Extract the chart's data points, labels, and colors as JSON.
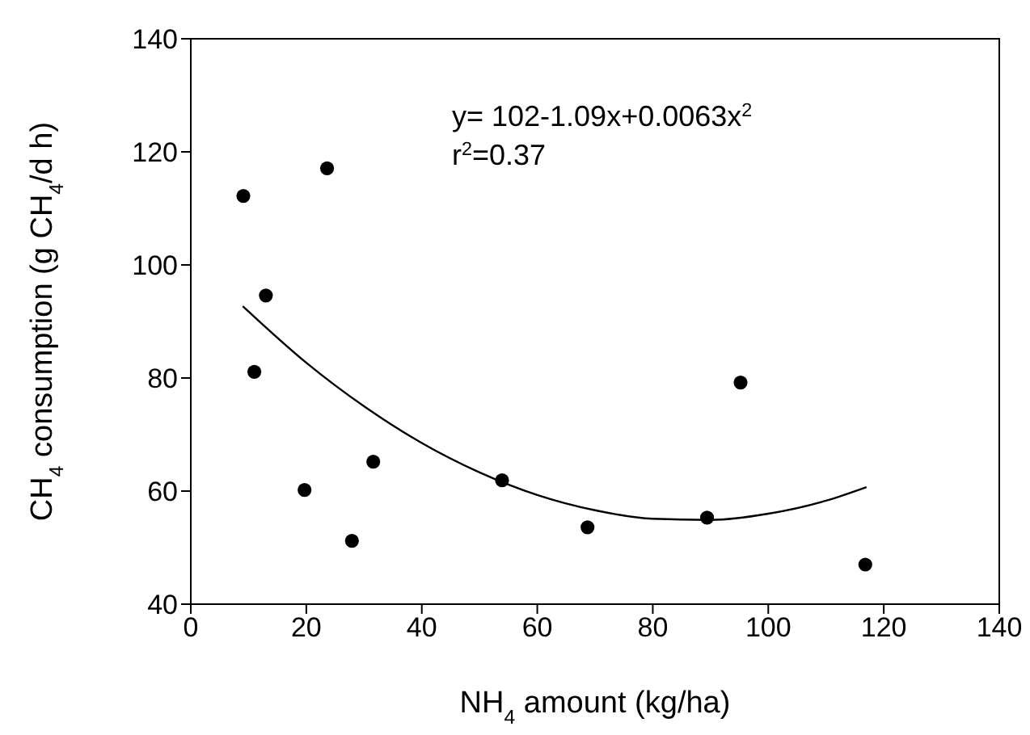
{
  "chart_data": {
    "type": "scatter",
    "xlabel": "NH$_{4}$ amount (kg/ha)",
    "ylabel": "CH$_{4}$ consumption (g CH$_{4}$/d h)",
    "annotations": [
      "y= 102-1.09x+0.0063x$^{2}$",
      "r$^{2}$=0.37"
    ],
    "xlim": [
      0,
      140
    ],
    "xticks": [
      0,
      20,
      40,
      60,
      80,
      100,
      120,
      140
    ],
    "ylim": [
      40,
      140
    ],
    "yticks": [
      40,
      60,
      80,
      100,
      120,
      140
    ],
    "grid": false,
    "legend": false,
    "marker": "circle",
    "series": [
      {
        "color": "#000000",
        "x": [
          9.1,
          23.6,
          13.0,
          11.0,
          19.7,
          31.6,
          27.9,
          53.9,
          68.7,
          89.4,
          95.2,
          116.8
        ],
        "values": [
          112.2,
          117.1,
          94.6,
          81.1,
          60.2,
          65.2,
          51.2,
          61.9,
          53.6,
          55.3,
          79.2,
          47.0
        ]
      },
      {
        "type": "line",
        "color": "#000000",
        "marker": "none",
        "line_style": "solid",
        "x": [
          9,
          20,
          30,
          40,
          50,
          60,
          70,
          80,
          90,
          100,
          110,
          117
        ],
        "values": [
          92.7,
          82.7,
          75.0,
          68.5,
          63.3,
          59.3,
          56.6,
          55.1,
          54.9,
          56.0,
          58.3,
          60.7
        ]
      }
    ]
  }
}
